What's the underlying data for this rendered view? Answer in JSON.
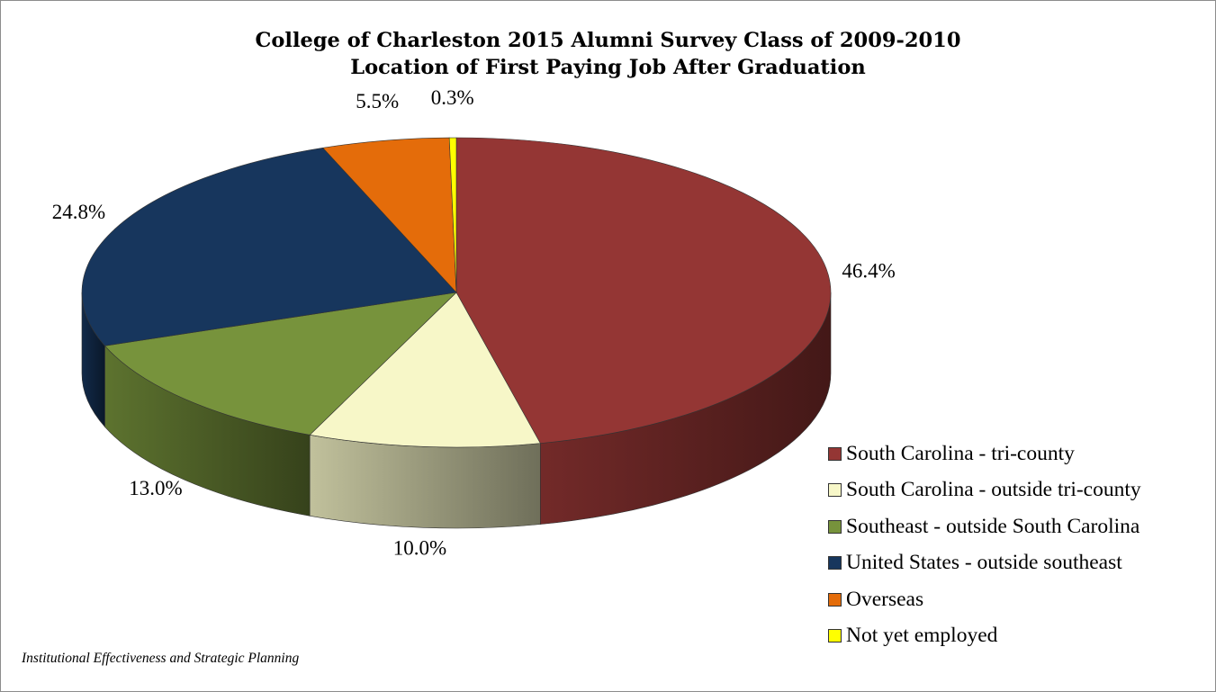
{
  "chart_data": {
    "type": "pie",
    "title": "College of Charleston 2015 Alumni Survey Class of 2009-2010",
    "subtitle": "Location of First Paying Job After Graduation",
    "slices": [
      {
        "label": "South Carolina - tri-county",
        "value": 46.4,
        "display": "46.4%",
        "color": "#943634"
      },
      {
        "label": "South Carolina - outside tri-county",
        "value": 10.0,
        "display": "10.0%",
        "color": "#f7f7c8"
      },
      {
        "label": "Southeast - outside South Carolina",
        "value": 13.0,
        "display": "13.0%",
        "color": "#77933c"
      },
      {
        "label": "United States - outside southeast",
        "value": 24.8,
        "display": "24.8%",
        "color": "#17365d"
      },
      {
        "label": "Overseas",
        "value": 5.5,
        "display": "5.5%",
        "color": "#e46c0a"
      },
      {
        "label": "Not yet employed",
        "value": 0.3,
        "display": "0.3%",
        "color": "#ffff00"
      }
    ],
    "legend_position": "right",
    "style": "3d-pie"
  },
  "footer": "Institutional Effectiveness and Strategic Planning"
}
